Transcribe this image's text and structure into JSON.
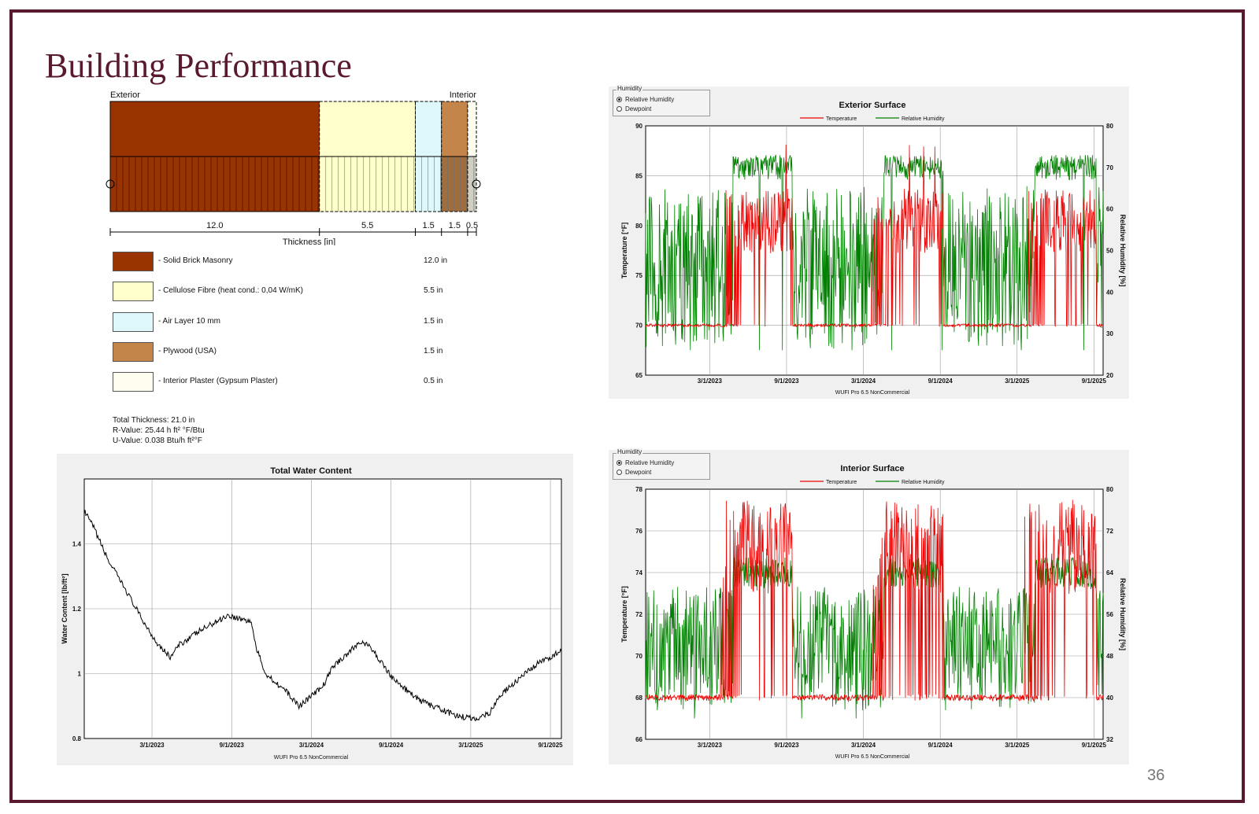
{
  "slide": {
    "title": "Building Performance",
    "page_number": "36"
  },
  "assembly": {
    "exterior_label": "Exterior",
    "interior_label": "Interior",
    "axis_label": "Thickness [in]",
    "layers": [
      {
        "name": "- Solid Brick Masonry",
        "thickness": "12.0 in",
        "value": 12.0,
        "tick": "12.0",
        "color": "#993300"
      },
      {
        "name": "- Cellulose Fibre (heat cond.: 0,04 W/mK)",
        "thickness": "5.5 in",
        "value": 5.5,
        "tick": "5.5",
        "color": "#ffffcc"
      },
      {
        "name": "- Air Layer 10 mm",
        "thickness": "1.5 in",
        "value": 1.5,
        "tick": "1.5",
        "color": "#ddf7fb"
      },
      {
        "name": "- Plywood (USA)",
        "thickness": "1.5 in",
        "value": 1.5,
        "tick": "1.5",
        "color": "#c4854a"
      },
      {
        "name": "- Interior Plaster (Gypsum Plaster)",
        "thickness": "0.5 in",
        "value": 0.5,
        "tick": "0.5",
        "color": "#fffdf0"
      }
    ],
    "summary": {
      "total": "Total Thickness: 21.0 in",
      "r_value": "R-Value: 25.44 h ft² °F/Btu",
      "u_value": "U-Value: 0.038 Btu/h ft²°F"
    }
  },
  "chart_data": [
    {
      "type": "line",
      "title": "Exterior Surface",
      "footer": "WUFI Pro 6.5 NonCommercial",
      "radio_group": {
        "label": "Humidity",
        "options": [
          "Relative Humidity",
          "Dewpoint"
        ],
        "selected": "Relative Humidity"
      },
      "xlabel": "",
      "x_ticks": [
        "3/1/2023",
        "9/1/2023",
        "3/1/2024",
        "9/1/2024",
        "3/1/2025",
        "9/1/2025"
      ],
      "y_left": {
        "label": "Temperature [°F]",
        "range": [
          65,
          90
        ],
        "ticks": [
          "65",
          "70",
          "75",
          "80",
          "85",
          "90"
        ]
      },
      "y_right": {
        "label": "Relative Humidity [%]",
        "range": [
          20,
          80
        ],
        "ticks": [
          "20",
          "30",
          "40",
          "50",
          "60",
          "70",
          "80"
        ]
      },
      "series": [
        {
          "name": "Temperature",
          "color": "#ee0000",
          "axis": "left",
          "summer_level": 83,
          "winter_level": 70,
          "peak": 88
        },
        {
          "name": "Relative Humidity",
          "color": "#008000",
          "axis": "right",
          "high_level": 70,
          "low_level": 42,
          "min": 26
        }
      ],
      "grid": true
    },
    {
      "type": "line",
      "title": "Interior Surface",
      "footer": "WUFI Pro 6.5 NonCommercial",
      "radio_group": {
        "label": "Humidity",
        "options": [
          "Relative Humidity",
          "Dewpoint"
        ],
        "selected": "Relative Humidity"
      },
      "xlabel": "",
      "x_ticks": [
        "3/1/2023",
        "9/1/2023",
        "3/1/2024",
        "9/1/2024",
        "3/1/2025",
        "9/1/2025"
      ],
      "y_left": {
        "label": "Temperature [°F]",
        "range": [
          66,
          78
        ],
        "ticks": [
          "66",
          "68",
          "70",
          "72",
          "74",
          "76",
          "78"
        ]
      },
      "y_right": {
        "label": "Relative Humidity [%]",
        "range": [
          32,
          80
        ],
        "ticks": [
          "32",
          "40",
          "48",
          "56",
          "64",
          "72",
          "80"
        ]
      },
      "series": [
        {
          "name": "Temperature",
          "color": "#ee0000",
          "axis": "left",
          "summer_level": 77,
          "winter_level": 68
        },
        {
          "name": "Relative Humidity",
          "color": "#008000",
          "axis": "right",
          "high_level": 64,
          "low_level": 47,
          "min": 36
        }
      ],
      "grid": true
    },
    {
      "type": "line",
      "title": "Total Water Content",
      "footer": "WUFI Pro 6.5 NonCommercial",
      "x_ticks": [
        "3/1/2023",
        "9/1/2023",
        "3/1/2024",
        "9/1/2024",
        "3/1/2025",
        "9/1/2025"
      ],
      "y_left": {
        "label": "Water Content [lb/ft²]",
        "range": [
          0.8,
          1.6
        ],
        "ticks": [
          "0.8",
          "1",
          "1.2",
          "1.4"
        ]
      },
      "series": [
        {
          "name": "",
          "color": "#000000",
          "x": [
            0,
            0.02,
            0.05,
            0.09,
            0.12,
            0.15,
            0.18,
            0.2,
            0.24,
            0.3,
            0.35,
            0.36,
            0.38,
            0.42,
            0.45,
            0.5,
            0.52,
            0.58,
            0.6,
            0.65,
            0.7,
            0.73,
            0.78,
            0.82,
            0.85,
            0.87,
            0.9,
            0.95,
            1.0
          ],
          "y": [
            1.5,
            1.45,
            1.35,
            1.25,
            1.17,
            1.1,
            1.05,
            1.09,
            1.13,
            1.18,
            1.16,
            1.08,
            1.0,
            0.95,
            0.9,
            0.96,
            1.02,
            1.1,
            1.08,
            0.98,
            0.92,
            0.9,
            0.87,
            0.86,
            0.88,
            0.93,
            0.97,
            1.03,
            1.07
          ]
        }
      ],
      "grid": true
    }
  ]
}
